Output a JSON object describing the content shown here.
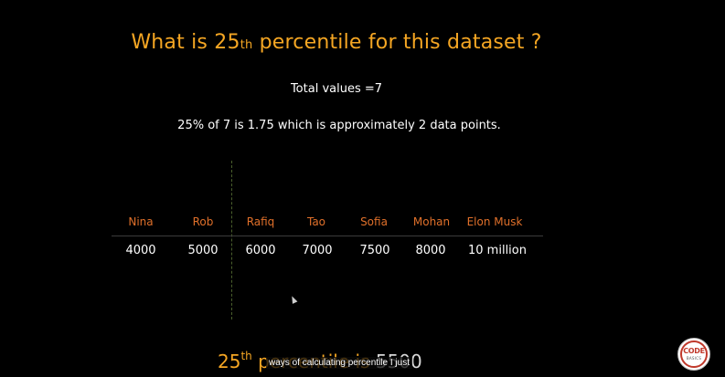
{
  "slide": {
    "title": {
      "before": "What is 25",
      "superscript": "th",
      "after": " percentile for this dataset ?"
    },
    "total_values": "Total values =7",
    "calculation": "25% of 7 is 1.75 which is approximately 2 data points."
  },
  "table": {
    "names": [
      "Nina",
      "Rob",
      "Rafiq",
      "Tao",
      "Sofia",
      "Mohan",
      "Elon Musk"
    ],
    "values": [
      "4000",
      "5000",
      "6000",
      "7000",
      "7500",
      "8000",
      "10 million"
    ]
  },
  "conclusion": {
    "prefix": "25",
    "superscript": "th",
    "middle": " percentile is ",
    "value": "5500"
  },
  "caption": "ways of calculating percentile I just",
  "watermark": {
    "brand_top": "CODE",
    "brand_bottom": "BASICS",
    "colors": {
      "ring": "#c0392b"
    }
  },
  "colors": {
    "title": "#f5a623",
    "header": "#e0702a",
    "background": "#000000",
    "text": "#ffffff"
  }
}
